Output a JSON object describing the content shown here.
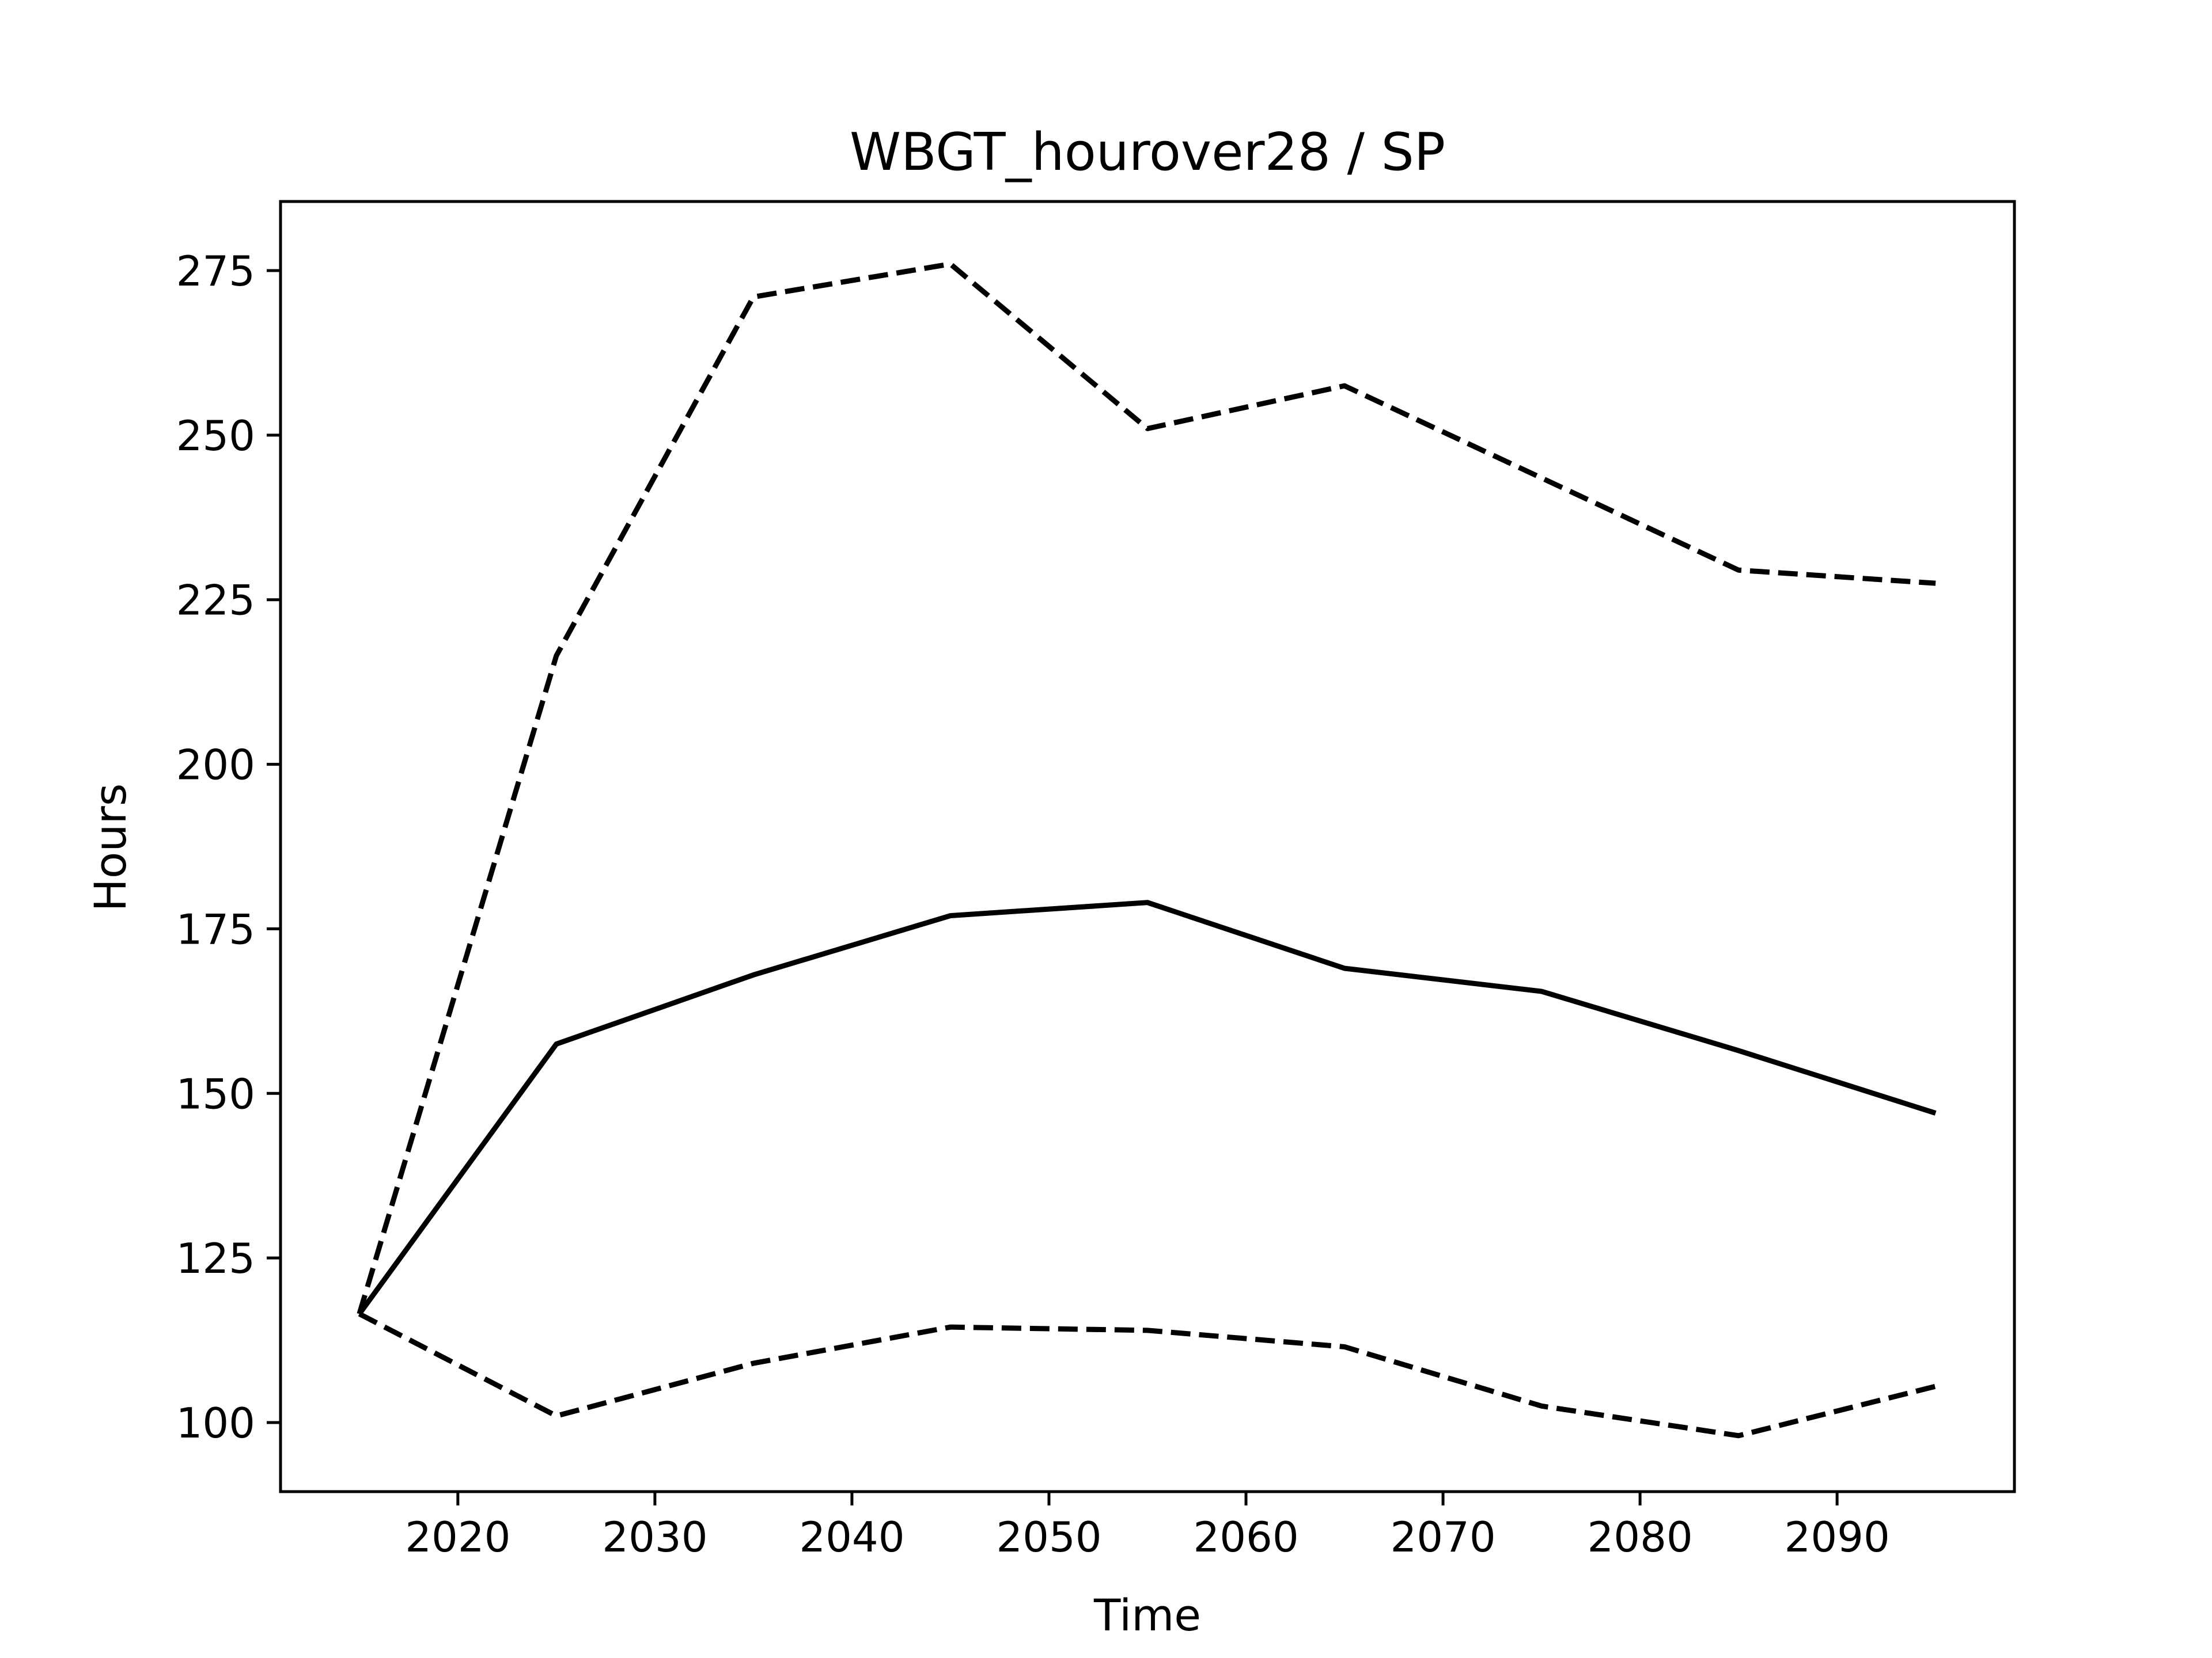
{
  "chart_data": {
    "type": "line",
    "title": "WBGT_hourover28 / SP",
    "xlabel": "Time",
    "ylabel": "Hours",
    "xlim": [
      2011,
      2099
    ],
    "ylim": [
      89.5,
      285.5
    ],
    "xticks": [
      2020,
      2030,
      2040,
      2050,
      2060,
      2070,
      2080,
      2090
    ],
    "yticks": [
      100,
      125,
      150,
      175,
      200,
      225,
      250,
      275
    ],
    "grid": false,
    "x": [
      2015,
      2025,
      2035,
      2045,
      2055,
      2065,
      2075,
      2085,
      2095
    ],
    "series": [
      {
        "style": "dashed",
        "values": [
          116.5,
          216.5,
          271,
          276,
          251,
          257.5,
          243.5,
          229.5,
          227.5
        ]
      },
      {
        "style": "solid",
        "values": [
          116.5,
          157.5,
          168,
          177,
          179,
          169,
          165.5,
          156.5,
          147
        ]
      },
      {
        "style": "dashed",
        "values": [
          116.5,
          101,
          109,
          114.5,
          114,
          111.5,
          102.5,
          98,
          105.5
        ]
      }
    ]
  }
}
